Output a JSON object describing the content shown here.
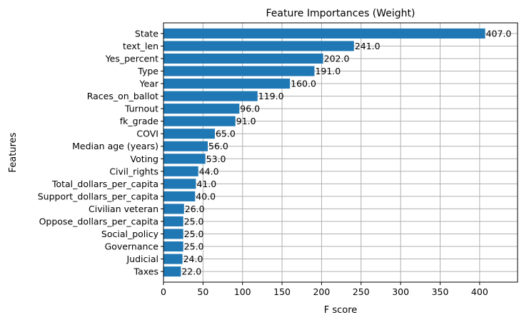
{
  "chart_data": {
    "type": "bar",
    "orientation": "horizontal",
    "title": "Feature Importances (Weight)",
    "xlabel": "F score",
    "ylabel": "Features",
    "xlim": [
      0,
      448
    ],
    "xticks": [
      0,
      50,
      100,
      150,
      200,
      250,
      300,
      350,
      400
    ],
    "grid": true,
    "bar_color": "#1f77b4",
    "categories": [
      "State",
      "text_len",
      "Yes_percent",
      "Type",
      "Year",
      "Races_on_ballot",
      "Turnout",
      "fk_grade",
      "COVI",
      "Median age (years)",
      "Voting",
      "Civil_rights",
      "Total_dollars_per_capita",
      "Support_dollars_per_capita",
      "Civilian veteran",
      "Oppose_dollars_per_capita",
      "Social_policy",
      "Governance",
      "Judicial",
      "Taxes"
    ],
    "values": [
      407,
      241,
      202,
      191,
      160,
      119,
      96,
      91,
      65,
      56,
      53,
      44,
      41,
      40,
      26,
      25,
      25,
      25,
      24,
      22
    ],
    "value_labels": [
      "407.0",
      "241.0",
      "202.0",
      "191.0",
      "160.0",
      "119.0",
      "96.0",
      "91.0",
      "65.0",
      "56.0",
      "53.0",
      "44.0",
      "41.0",
      "40.0",
      "26.0",
      "25.0",
      "25.0",
      "25.0",
      "24.0",
      "22.0"
    ]
  }
}
